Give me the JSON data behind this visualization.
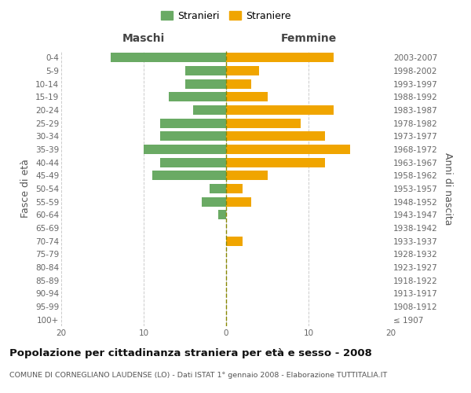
{
  "age_groups": [
    "100+",
    "95-99",
    "90-94",
    "85-89",
    "80-84",
    "75-79",
    "70-74",
    "65-69",
    "60-64",
    "55-59",
    "50-54",
    "45-49",
    "40-44",
    "35-39",
    "30-34",
    "25-29",
    "20-24",
    "15-19",
    "10-14",
    "5-9",
    "0-4"
  ],
  "birth_years": [
    "≤ 1907",
    "1908-1912",
    "1913-1917",
    "1918-1922",
    "1923-1927",
    "1928-1932",
    "1933-1937",
    "1938-1942",
    "1943-1947",
    "1948-1952",
    "1953-1957",
    "1958-1962",
    "1963-1967",
    "1968-1972",
    "1973-1977",
    "1978-1982",
    "1983-1987",
    "1988-1992",
    "1993-1997",
    "1998-2002",
    "2003-2007"
  ],
  "males": [
    0,
    0,
    0,
    0,
    0,
    0,
    0,
    0,
    1,
    3,
    2,
    9,
    8,
    10,
    8,
    8,
    4,
    7,
    5,
    5,
    14
  ],
  "females": [
    0,
    0,
    0,
    0,
    0,
    0,
    2,
    0,
    0,
    3,
    2,
    5,
    12,
    15,
    12,
    9,
    13,
    5,
    3,
    4,
    13
  ],
  "male_color": "#6aaa64",
  "female_color": "#f0a500",
  "xlim": 20,
  "title": "Popolazione per cittadinanza straniera per età e sesso - 2008",
  "subtitle": "COMUNE DI CORNEGLIANO LAUDENSE (LO) - Dati ISTAT 1° gennaio 2008 - Elaborazione TUTTITALIA.IT",
  "legend_male": "Stranieri",
  "legend_female": "Straniere",
  "left_header": "Maschi",
  "right_header": "Femmine",
  "ylabel_left": "Fasce di età",
  "ylabel_right": "Anni di nascita",
  "bg_color": "#ffffff",
  "grid_color": "#cccccc",
  "bar_height": 0.72,
  "tick_fontsize": 7.5,
  "header_fontsize": 10,
  "legend_fontsize": 9,
  "title_fontsize": 9.5,
  "subtitle_fontsize": 6.8
}
